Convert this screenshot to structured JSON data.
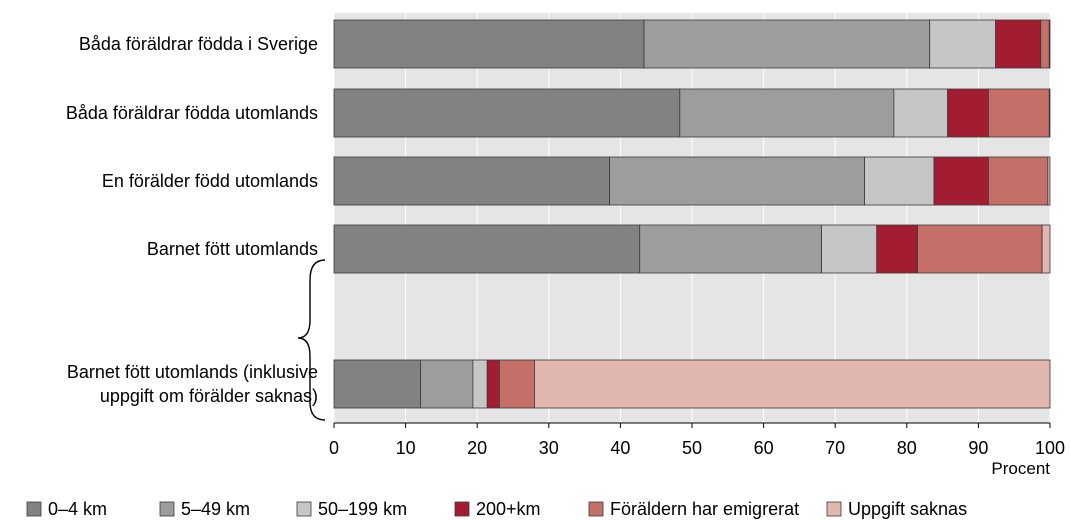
{
  "chart_data": {
    "type": "bar",
    "orientation": "horizontal",
    "stacked": true,
    "xlabel": "Procent",
    "ylabel": "",
    "xlim": [
      0,
      100
    ],
    "xticks": [
      "0",
      "10",
      "20",
      "30",
      "40",
      "50",
      "60",
      "70",
      "80",
      "90",
      "100"
    ],
    "grid": true,
    "legend_position": "bottom",
    "categories": [
      {
        "lines": [
          "Båda föräldrar födda i Sverige"
        ]
      },
      {
        "lines": [
          "Båda föräldrar födda utomlands"
        ]
      },
      {
        "lines": [
          "En förälder född utomlands"
        ]
      },
      {
        "lines": [
          "Barnet fött utomlands"
        ]
      },
      {
        "lines": [
          "Barnet fött utomlands (inklusive",
          "uppgift om förälder saknas)"
        ]
      }
    ],
    "series": [
      {
        "name": "0–4 km",
        "color": "#828282",
        "values": [
          43.3,
          48.3,
          38.5,
          42.7,
          12.1
        ]
      },
      {
        "name": "5–49 km",
        "color": "#9d9d9d",
        "values": [
          39.9,
          29.9,
          35.6,
          25.4,
          7.3
        ]
      },
      {
        "name": "50–199 km",
        "color": "#c6c6c6",
        "values": [
          9.2,
          7.5,
          9.7,
          7.7,
          2.0
        ]
      },
      {
        "name": "200+km",
        "color": "#a31d32",
        "values": [
          6.3,
          5.7,
          7.6,
          5.7,
          1.7
        ]
      },
      {
        "name": "Föräldern har emigrerat",
        "color": "#c47068",
        "values": [
          1.2,
          8.5,
          8.3,
          17.4,
          4.9
        ]
      },
      {
        "name": "Uppgift saknas",
        "color": "#e1b6ae",
        "values": [
          0.1,
          0.1,
          0.3,
          1.1,
          72.0
        ]
      }
    ]
  }
}
